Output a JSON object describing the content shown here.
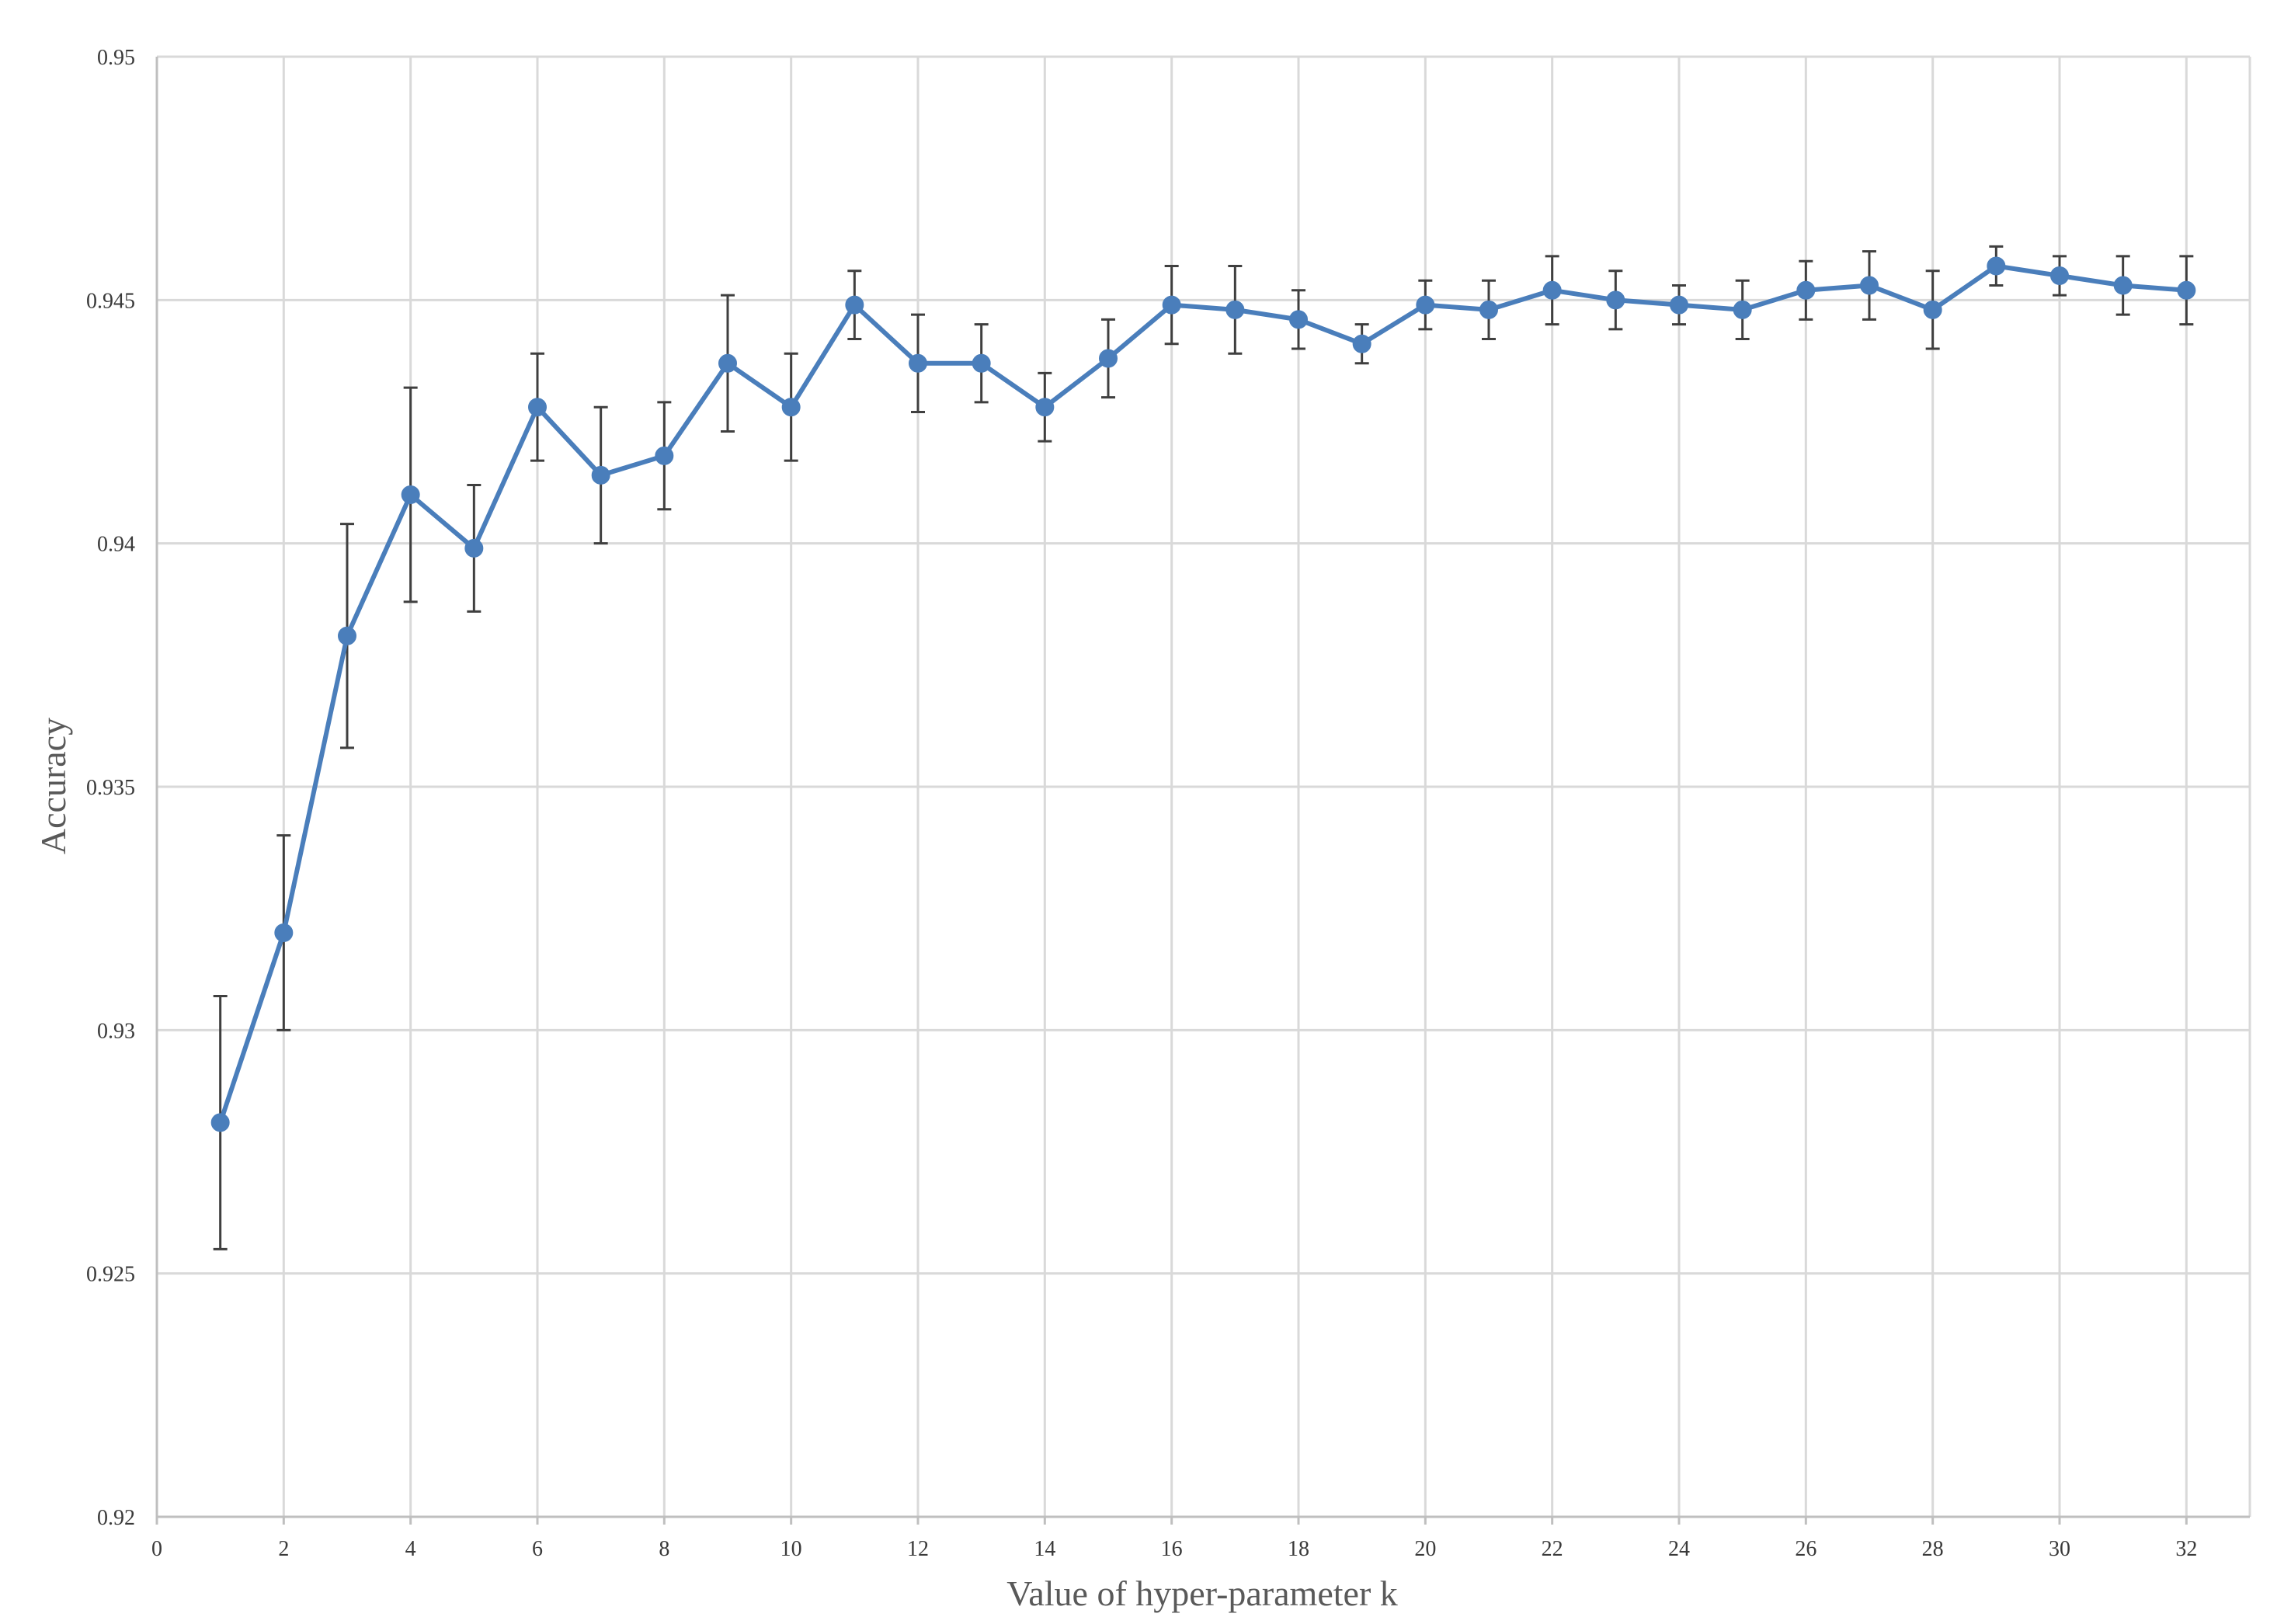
{
  "chart_data": {
    "type": "line",
    "title": "",
    "xlabel": "Value of hyper-parameter k",
    "ylabel": "Accuracy",
    "xlim": [
      0,
      33
    ],
    "ylim": [
      0.92,
      0.95
    ],
    "x_ticks": [
      0,
      2,
      4,
      6,
      8,
      10,
      12,
      14,
      16,
      18,
      20,
      22,
      24,
      26,
      28,
      30,
      32
    ],
    "y_ticks": [
      0.92,
      0.925,
      0.93,
      0.935,
      0.94,
      0.945,
      0.95
    ],
    "x_tick_labels": [
      "0",
      "2",
      "4",
      "6",
      "8",
      "10",
      "12",
      "14",
      "16",
      "18",
      "20",
      "22",
      "24",
      "26",
      "28",
      "30",
      "32"
    ],
    "y_tick_labels": [
      "0.92",
      "0.925",
      "0.93",
      "0.935",
      "0.94",
      "0.945",
      "0.95"
    ],
    "grid": true,
    "legend": "none",
    "colors": {
      "series": "#4a7ebb",
      "error_bars": "#3f3f3f",
      "grid": "#d9d9d9"
    },
    "series": [
      {
        "x": [
          1,
          2,
          3,
          4,
          5,
          6,
          7,
          8,
          9,
          10,
          11,
          12,
          13,
          14,
          15,
          16,
          17,
          18,
          19,
          20,
          21,
          22,
          23,
          24,
          25,
          26,
          27,
          28,
          29,
          30,
          31,
          32
        ],
        "values": [
          0.9281,
          0.932,
          0.9381,
          0.941,
          0.9399,
          0.9428,
          0.9414,
          0.9418,
          0.9437,
          0.9428,
          0.9449,
          0.9437,
          0.9437,
          0.9428,
          0.9438,
          0.9449,
          0.9448,
          0.9446,
          0.9441,
          0.9449,
          0.9448,
          0.9452,
          0.945,
          0.9449,
          0.9448,
          0.9452,
          0.9453,
          0.9448,
          0.9457,
          0.9455,
          0.9453,
          0.9452
        ],
        "error": [
          0.0026,
          0.002,
          0.0023,
          0.0022,
          0.0013,
          0.0011,
          0.0014,
          0.0011,
          0.0014,
          0.0011,
          0.0007,
          0.001,
          0.0008,
          0.0007,
          0.0008,
          0.0008,
          0.0009,
          0.0006,
          0.0004,
          0.0005,
          0.0006,
          0.0007,
          0.0006,
          0.0004,
          0.0006,
          0.0006,
          0.0007,
          0.0008,
          0.0004,
          0.0004,
          0.0006,
          0.0007
        ]
      }
    ]
  }
}
